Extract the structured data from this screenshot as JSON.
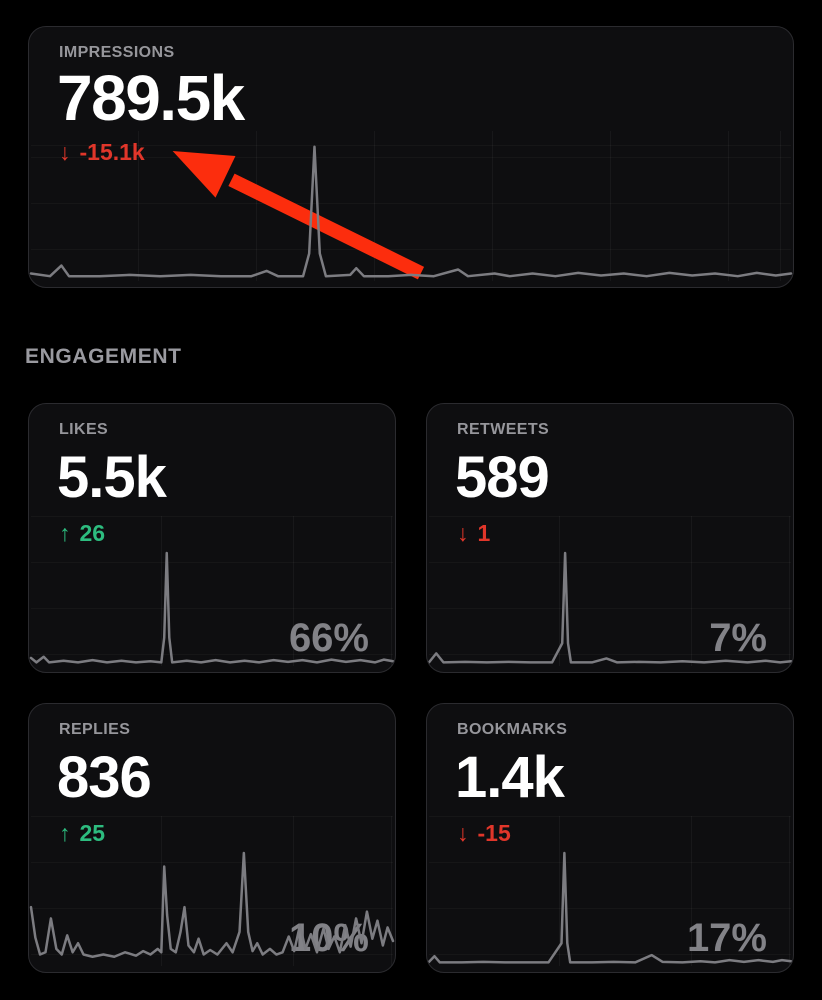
{
  "colors": {
    "background": "#000000",
    "card_background": "#0e0e10",
    "card_border": "#2b2b2f",
    "positive": "#2dbc7f",
    "negative": "#e1362a",
    "annotation_arrow": "#fc2d0d",
    "sparkline": "#7c7c81",
    "percent_text": "#828287",
    "label_text": "#96969b"
  },
  "impressions": {
    "label": "IMPRESSIONS",
    "value": "789.5k",
    "delta_arrow": "↓",
    "delta": "-15.1k",
    "delta_direction": "down",
    "sparkline": [
      [
        0,
        0.05
      ],
      [
        0.025,
        0.03
      ],
      [
        0.04,
        0.11
      ],
      [
        0.05,
        0.03
      ],
      [
        0.09,
        0.03
      ],
      [
        0.13,
        0.04
      ],
      [
        0.17,
        0.03
      ],
      [
        0.21,
        0.04
      ],
      [
        0.25,
        0.03
      ],
      [
        0.29,
        0.03
      ],
      [
        0.31,
        0.07
      ],
      [
        0.325,
        0.03
      ],
      [
        0.358,
        0.03
      ],
      [
        0.366,
        0.2
      ],
      [
        0.373,
        1
      ],
      [
        0.38,
        0.2
      ],
      [
        0.388,
        0.03
      ],
      [
        0.42,
        0.04
      ],
      [
        0.428,
        0.09
      ],
      [
        0.438,
        0.03
      ],
      [
        0.47,
        0.03
      ],
      [
        0.5,
        0.04
      ],
      [
        0.53,
        0.03
      ],
      [
        0.562,
        0.08
      ],
      [
        0.575,
        0.03
      ],
      [
        0.61,
        0.05
      ],
      [
        0.63,
        0.03
      ],
      [
        0.66,
        0.05
      ],
      [
        0.69,
        0.03
      ],
      [
        0.72,
        0.055
      ],
      [
        0.75,
        0.035
      ],
      [
        0.78,
        0.05
      ],
      [
        0.81,
        0.03
      ],
      [
        0.84,
        0.055
      ],
      [
        0.87,
        0.035
      ],
      [
        0.9,
        0.05
      ],
      [
        0.93,
        0.03
      ],
      [
        0.955,
        0.055
      ],
      [
        0.98,
        0.035
      ],
      [
        1,
        0.05
      ]
    ]
  },
  "annotation": {
    "type": "red-arrow",
    "points_to": "impressions-delta",
    "color": "#fc2d0d"
  },
  "engagement_section": {
    "label": "ENGAGEMENT",
    "cards": [
      {
        "id": "likes",
        "label": "LIKES",
        "value": "5.5k",
        "delta_arrow": "↑",
        "delta": "26",
        "delta_direction": "up",
        "percent": "66%",
        "sparkline": [
          [
            0,
            0.07
          ],
          [
            0.015,
            0.03
          ],
          [
            0.035,
            0.08
          ],
          [
            0.05,
            0.03
          ],
          [
            0.09,
            0.045
          ],
          [
            0.13,
            0.03
          ],
          [
            0.17,
            0.05
          ],
          [
            0.21,
            0.03
          ],
          [
            0.25,
            0.045
          ],
          [
            0.29,
            0.03
          ],
          [
            0.33,
            0.04
          ],
          [
            0.36,
            0.03
          ],
          [
            0.368,
            0.25
          ],
          [
            0.375,
            1
          ],
          [
            0.382,
            0.25
          ],
          [
            0.39,
            0.03
          ],
          [
            0.43,
            0.045
          ],
          [
            0.47,
            0.03
          ],
          [
            0.51,
            0.05
          ],
          [
            0.55,
            0.03
          ],
          [
            0.59,
            0.045
          ],
          [
            0.63,
            0.03
          ],
          [
            0.67,
            0.05
          ],
          [
            0.71,
            0.035
          ],
          [
            0.75,
            0.05
          ],
          [
            0.79,
            0.03
          ],
          [
            0.83,
            0.055
          ],
          [
            0.87,
            0.035
          ],
          [
            0.91,
            0.05
          ],
          [
            0.95,
            0.03
          ],
          [
            0.975,
            0.055
          ],
          [
            1,
            0.04
          ]
        ]
      },
      {
        "id": "retweets",
        "label": "RETWEETS",
        "value": "589",
        "delta_arrow": "↓",
        "delta": "1",
        "delta_direction": "down",
        "percent": "7%",
        "sparkline": [
          [
            0,
            0.03
          ],
          [
            0.02,
            0.11
          ],
          [
            0.04,
            0.03
          ],
          [
            0.1,
            0.035
          ],
          [
            0.16,
            0.03
          ],
          [
            0.22,
            0.035
          ],
          [
            0.28,
            0.03
          ],
          [
            0.34,
            0.03
          ],
          [
            0.368,
            0.2
          ],
          [
            0.376,
            1
          ],
          [
            0.384,
            0.2
          ],
          [
            0.392,
            0.03
          ],
          [
            0.45,
            0.03
          ],
          [
            0.49,
            0.065
          ],
          [
            0.52,
            0.03
          ],
          [
            0.58,
            0.035
          ],
          [
            0.64,
            0.03
          ],
          [
            0.7,
            0.04
          ],
          [
            0.76,
            0.03
          ],
          [
            0.82,
            0.045
          ],
          [
            0.88,
            0.03
          ],
          [
            0.93,
            0.045
          ],
          [
            0.97,
            0.03
          ],
          [
            1,
            0.04
          ]
        ]
      },
      {
        "id": "replies",
        "label": "REPLIES",
        "value": "836",
        "delta_arrow": "↑",
        "delta": "25",
        "delta_direction": "up",
        "percent": "10%",
        "sparkline": [
          [
            0,
            0.52
          ],
          [
            0.012,
            0.25
          ],
          [
            0.025,
            0.1
          ],
          [
            0.04,
            0.12
          ],
          [
            0.055,
            0.42
          ],
          [
            0.07,
            0.15
          ],
          [
            0.085,
            0.1
          ],
          [
            0.1,
            0.27
          ],
          [
            0.115,
            0.12
          ],
          [
            0.13,
            0.2
          ],
          [
            0.145,
            0.1
          ],
          [
            0.17,
            0.08
          ],
          [
            0.2,
            0.1
          ],
          [
            0.23,
            0.08
          ],
          [
            0.26,
            0.12
          ],
          [
            0.29,
            0.09
          ],
          [
            0.31,
            0.13
          ],
          [
            0.33,
            0.1
          ],
          [
            0.35,
            0.15
          ],
          [
            0.36,
            0.12
          ],
          [
            0.368,
            0.88
          ],
          [
            0.376,
            0.45
          ],
          [
            0.386,
            0.15
          ],
          [
            0.4,
            0.12
          ],
          [
            0.413,
            0.3
          ],
          [
            0.424,
            0.52
          ],
          [
            0.435,
            0.18
          ],
          [
            0.45,
            0.12
          ],
          [
            0.463,
            0.24
          ],
          [
            0.477,
            0.1
          ],
          [
            0.495,
            0.14
          ],
          [
            0.515,
            0.1
          ],
          [
            0.54,
            0.2
          ],
          [
            0.557,
            0.12
          ],
          [
            0.576,
            0.3
          ],
          [
            0.588,
            1
          ],
          [
            0.6,
            0.3
          ],
          [
            0.612,
            0.13
          ],
          [
            0.625,
            0.2
          ],
          [
            0.64,
            0.1
          ],
          [
            0.66,
            0.15
          ],
          [
            0.678,
            0.1
          ],
          [
            0.695,
            0.12
          ],
          [
            0.712,
            0.26
          ],
          [
            0.727,
            0.13
          ],
          [
            0.743,
            0.36
          ],
          [
            0.758,
            0.15
          ],
          [
            0.773,
            0.28
          ],
          [
            0.79,
            0.12
          ],
          [
            0.808,
            0.33
          ],
          [
            0.822,
            0.15
          ],
          [
            0.838,
            0.26
          ],
          [
            0.853,
            0.12
          ],
          [
            0.868,
            0.36
          ],
          [
            0.883,
            0.17
          ],
          [
            0.898,
            0.42
          ],
          [
            0.913,
            0.2
          ],
          [
            0.928,
            0.48
          ],
          [
            0.943,
            0.24
          ],
          [
            0.957,
            0.4
          ],
          [
            0.972,
            0.18
          ],
          [
            0.985,
            0.34
          ],
          [
            1,
            0.22
          ]
        ]
      },
      {
        "id": "bookmarks",
        "label": "BOOKMARKS",
        "value": "1.4k",
        "delta_arrow": "↓",
        "delta": "-15",
        "delta_direction": "down",
        "percent": "17%",
        "sparkline": [
          [
            0,
            0.035
          ],
          [
            0.015,
            0.085
          ],
          [
            0.03,
            0.03
          ],
          [
            0.09,
            0.03
          ],
          [
            0.15,
            0.035
          ],
          [
            0.21,
            0.03
          ],
          [
            0.27,
            0.03
          ],
          [
            0.33,
            0.03
          ],
          [
            0.366,
            0.2
          ],
          [
            0.374,
            1
          ],
          [
            0.382,
            0.2
          ],
          [
            0.39,
            0.03
          ],
          [
            0.45,
            0.03
          ],
          [
            0.51,
            0.035
          ],
          [
            0.57,
            0.03
          ],
          [
            0.615,
            0.095
          ],
          [
            0.645,
            0.035
          ],
          [
            0.7,
            0.03
          ],
          [
            0.75,
            0.04
          ],
          [
            0.79,
            0.03
          ],
          [
            0.83,
            0.05
          ],
          [
            0.87,
            0.035
          ],
          [
            0.91,
            0.05
          ],
          [
            0.95,
            0.035
          ],
          [
            0.975,
            0.05
          ],
          [
            1,
            0.04
          ]
        ]
      }
    ]
  }
}
